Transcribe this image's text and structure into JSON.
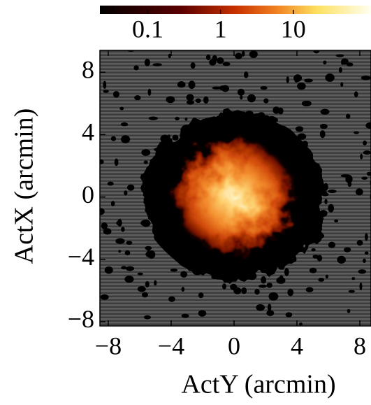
{
  "chart_data": {
    "type": "image",
    "x_label": "ActY (arcmin)",
    "y_label": "ActX (arcmin)",
    "xlim": [
      -8.53,
      8.71
    ],
    "ylim": [
      -8.27,
      9.4
    ],
    "xticks": [
      {
        "value": -8,
        "label": "−8"
      },
      {
        "value": -4,
        "label": "−4"
      },
      0,
      4,
      8
    ],
    "yticks": [
      {
        "value": -8,
        "label": "−8"
      },
      {
        "value": -4,
        "label": "−4"
      },
      0,
      4,
      8
    ],
    "colorbar": {
      "clim": [
        0.022,
        117
      ],
      "log": true,
      "ticks": [
        0.1,
        1,
        10
      ]
    }
  }
}
